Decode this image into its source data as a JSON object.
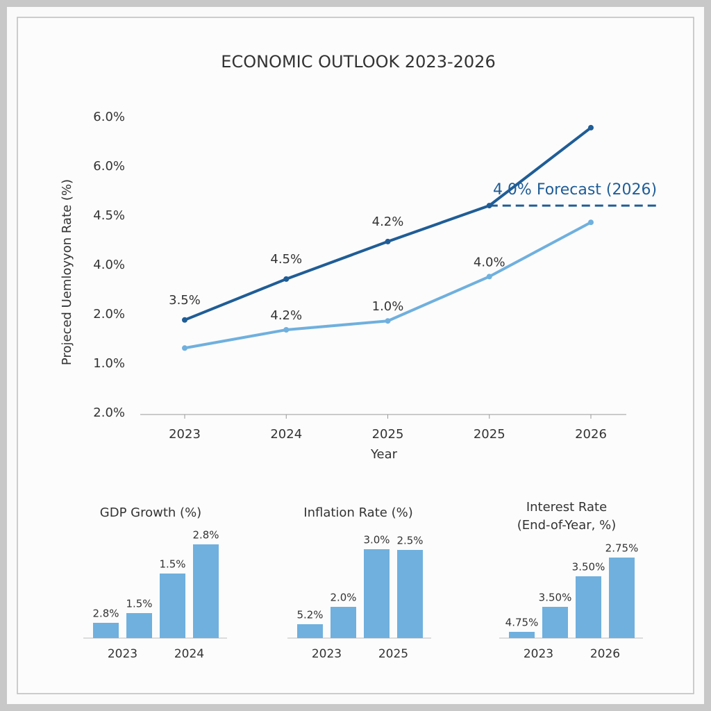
{
  "chart_data": [
    {
      "type": "line",
      "title": "ECONOMIC OUTLOOK 2023-2026",
      "y_label": "Projeced Uemloyyon Rate (%)",
      "x_label": "Year",
      "categories": [
        "2023",
        "2024",
        "2025",
        "2025",
        "2026"
      ],
      "ylim": [
        0,
        6
      ],
      "yticks": [
        {
          "value": 0,
          "label": "2.0%"
        },
        {
          "value": 1,
          "label": "1.0%"
        },
        {
          "value": 2,
          "label": "2.0%"
        },
        {
          "value": 3,
          "label": "4.0%"
        },
        {
          "value": 4,
          "label": "4.5%"
        },
        {
          "value": 5,
          "label": "6.0%"
        },
        {
          "value": 6,
          "label": "6.0%"
        }
      ],
      "series": [
        {
          "color": "#1f5d96",
          "values": [
            1.89,
            2.72,
            3.48,
            4.21,
            5.79
          ],
          "point_labels": [
            "3.5%",
            "4.5%",
            "4.2%",
            null,
            null
          ]
        },
        {
          "color": "#6fb0de",
          "values": [
            1.32,
            1.69,
            1.87,
            2.77,
            3.87
          ],
          "point_labels": [
            null,
            "4.2%",
            "1.0%",
            "4.0%",
            null
          ]
        }
      ],
      "forecast_line": {
        "value": 4.21,
        "label": "4.0% Forecast (2026)",
        "color": "#1f5d96"
      }
    },
    {
      "type": "bar",
      "title": [
        "GDP Growth (%)"
      ],
      "categories": [
        "2023",
        null,
        "2024",
        null
      ],
      "values": [
        22,
        36,
        93,
        135
      ],
      "bar_labels": [
        "2.8%",
        "1.5%",
        "1.5%",
        "2.8%"
      ],
      "color": "#6fb0de"
    },
    {
      "type": "bar",
      "title": [
        "Inflation Rate (%)"
      ],
      "categories": [
        "2023",
        null,
        "2025",
        null
      ],
      "values": [
        20,
        45,
        128,
        127
      ],
      "bar_labels": [
        "5.2%",
        "2.0%",
        "3.0%",
        "2.5%"
      ],
      "color": "#6fb0de"
    },
    {
      "type": "bar",
      "title": [
        "Interest Rate",
        "(End-of-Year, %)"
      ],
      "categories": [
        "2023",
        null,
        "2026",
        null
      ],
      "values": [
        9,
        45,
        89,
        116
      ],
      "bar_labels": [
        "4.75%",
        "3.50%",
        "3.50%",
        "2.75%"
      ],
      "color": "#6fb0de"
    }
  ]
}
